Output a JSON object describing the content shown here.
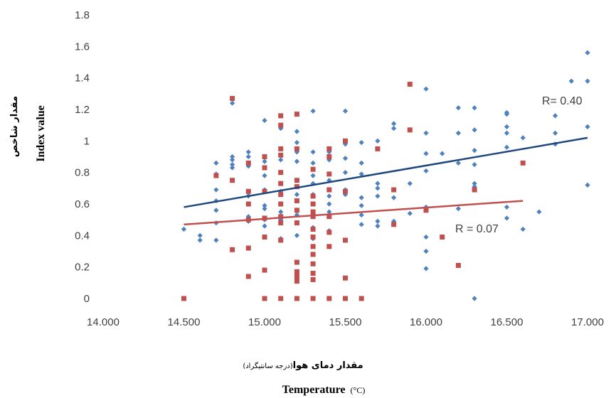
{
  "chart_data": {
    "type": "scatter",
    "title": "",
    "xlabel_fa": "مقدار دمای هوا",
    "xlabel_fa_paren": "(درجه سانتیگراد)",
    "xlabel": "Temperature",
    "xlabel_unit": "(°C)",
    "ylabel_fa": "مقدار شاخص",
    "ylabel": "Index value",
    "xlim": [
      14.0,
      17.0
    ],
    "ylim": [
      0,
      1.8
    ],
    "xticks": [
      "14.000",
      "14.500",
      "15.000",
      "15.500",
      "16.000",
      "16.500",
      "17.000"
    ],
    "yticks": [
      "0",
      "0.2",
      "0.4",
      "0.6",
      "0.8",
      "1",
      "1.2",
      "1.4",
      "1.6",
      "1.8"
    ],
    "grid": false,
    "series": [
      {
        "marker": "diamond",
        "color": "#4f81bd",
        "trend_color": "#1f497d",
        "trend_label": "R= 0.40",
        "trend": [
          [
            14.5,
            0.58
          ],
          [
            17.0,
            1.02
          ]
        ],
        "points": [
          [
            14.5,
            0.44
          ],
          [
            14.6,
            0.4
          ],
          [
            14.6,
            0.37
          ],
          [
            14.7,
            0.86
          ],
          [
            14.7,
            0.79
          ],
          [
            14.7,
            0.69
          ],
          [
            14.7,
            0.62
          ],
          [
            14.7,
            0.56
          ],
          [
            14.7,
            0.48
          ],
          [
            14.7,
            0.37
          ],
          [
            14.8,
            1.24
          ],
          [
            14.8,
            0.9
          ],
          [
            14.8,
            0.88
          ],
          [
            14.8,
            0.85
          ],
          [
            14.8,
            0.83
          ],
          [
            14.9,
            0.93
          ],
          [
            14.9,
            0.9
          ],
          [
            14.9,
            0.84
          ],
          [
            14.9,
            0.67
          ],
          [
            14.9,
            0.65
          ],
          [
            14.9,
            0.52
          ],
          [
            14.9,
            0.49
          ],
          [
            15.0,
            1.13
          ],
          [
            15.0,
            0.87
          ],
          [
            15.0,
            0.78
          ],
          [
            15.0,
            0.69
          ],
          [
            15.0,
            0.59
          ],
          [
            15.0,
            0.57
          ],
          [
            15.0,
            0.5
          ],
          [
            15.0,
            0.46
          ],
          [
            15.1,
            1.08
          ],
          [
            15.1,
            0.88
          ],
          [
            15.1,
            0.68
          ],
          [
            15.1,
            0.55
          ],
          [
            15.1,
            0.5
          ],
          [
            15.1,
            0.38
          ],
          [
            15.2,
            1.06
          ],
          [
            15.2,
            0.99
          ],
          [
            15.2,
            0.93
          ],
          [
            15.2,
            0.87
          ],
          [
            15.2,
            0.66
          ],
          [
            15.2,
            0.62
          ],
          [
            15.2,
            0.53
          ],
          [
            15.2,
            0.4
          ],
          [
            15.3,
            1.19
          ],
          [
            15.3,
            0.93
          ],
          [
            15.3,
            0.86
          ],
          [
            15.3,
            0.78
          ],
          [
            15.3,
            0.73
          ],
          [
            15.3,
            0.66
          ],
          [
            15.3,
            0.6
          ],
          [
            15.3,
            0.52
          ],
          [
            15.3,
            0.45
          ],
          [
            15.3,
            0.38
          ],
          [
            15.4,
            0.93
          ],
          [
            15.4,
            0.88
          ],
          [
            15.4,
            0.75
          ],
          [
            15.4,
            0.65
          ],
          [
            15.4,
            0.6
          ],
          [
            15.4,
            0.55
          ],
          [
            15.4,
            0.43
          ],
          [
            15.5,
            1.19
          ],
          [
            15.5,
            0.98
          ],
          [
            15.5,
            0.89
          ],
          [
            15.5,
            0.8
          ],
          [
            15.5,
            0.69
          ],
          [
            15.5,
            0.66
          ],
          [
            15.6,
            0.99
          ],
          [
            15.6,
            0.86
          ],
          [
            15.6,
            0.79
          ],
          [
            15.6,
            0.64
          ],
          [
            15.6,
            0.59
          ],
          [
            15.6,
            0.53
          ],
          [
            15.6,
            0.47
          ],
          [
            15.7,
            1.0
          ],
          [
            15.7,
            0.73
          ],
          [
            15.7,
            0.7
          ],
          [
            15.7,
            0.65
          ],
          [
            15.7,
            0.49
          ],
          [
            15.7,
            0.46
          ],
          [
            15.8,
            1.11
          ],
          [
            15.8,
            1.08
          ],
          [
            15.8,
            0.64
          ],
          [
            15.8,
            0.49
          ],
          [
            15.9,
            0.73
          ],
          [
            15.9,
            0.54
          ],
          [
            16.0,
            1.33
          ],
          [
            16.0,
            1.05
          ],
          [
            16.0,
            0.92
          ],
          [
            16.0,
            0.81
          ],
          [
            16.0,
            0.58
          ],
          [
            16.0,
            0.39
          ],
          [
            16.0,
            0.3
          ],
          [
            16.0,
            0.19
          ],
          [
            16.1,
            0.92
          ],
          [
            16.2,
            1.21
          ],
          [
            16.2,
            1.05
          ],
          [
            16.2,
            0.86
          ],
          [
            16.2,
            0.57
          ],
          [
            16.3,
            1.21
          ],
          [
            16.3,
            1.07
          ],
          [
            16.3,
            0.94
          ],
          [
            16.3,
            0.85
          ],
          [
            16.3,
            0.73
          ],
          [
            16.3,
            0.71
          ],
          [
            16.3,
            0.0
          ],
          [
            16.5,
            1.18
          ],
          [
            16.5,
            1.17
          ],
          [
            16.5,
            1.09
          ],
          [
            16.5,
            1.05
          ],
          [
            16.5,
            0.96
          ],
          [
            16.5,
            0.58
          ],
          [
            16.5,
            0.51
          ],
          [
            16.6,
            1.02
          ],
          [
            16.6,
            0.44
          ],
          [
            16.7,
            0.55
          ],
          [
            16.8,
            1.16
          ],
          [
            16.8,
            1.05
          ],
          [
            16.8,
            0.98
          ],
          [
            16.9,
            1.38
          ],
          [
            17.0,
            1.56
          ],
          [
            17.0,
            1.38
          ],
          [
            17.0,
            1.09
          ],
          [
            17.0,
            0.72
          ]
        ]
      },
      {
        "marker": "square",
        "color": "#c0504d",
        "trend_color": "#c0504d",
        "trend_label": "R = 0.07",
        "trend": [
          [
            14.5,
            0.47
          ],
          [
            16.6,
            0.62
          ]
        ],
        "points": [
          [
            14.5,
            0.0
          ],
          [
            14.7,
            0.78
          ],
          [
            14.8,
            1.27
          ],
          [
            14.8,
            0.75
          ],
          [
            14.8,
            0.31
          ],
          [
            14.9,
            0.86
          ],
          [
            14.9,
            0.68
          ],
          [
            14.9,
            0.6
          ],
          [
            14.9,
            0.5
          ],
          [
            14.9,
            0.32
          ],
          [
            14.9,
            0.14
          ],
          [
            15.0,
            0.9
          ],
          [
            15.0,
            0.83
          ],
          [
            15.0,
            0.68
          ],
          [
            15.0,
            0.51
          ],
          [
            15.0,
            0.39
          ],
          [
            15.0,
            0.18
          ],
          [
            15.0,
            0.0
          ],
          [
            15.1,
            1.16
          ],
          [
            15.1,
            1.1
          ],
          [
            15.1,
            0.95
          ],
          [
            15.1,
            0.91
          ],
          [
            15.1,
            0.8
          ],
          [
            15.1,
            0.73
          ],
          [
            15.1,
            0.66
          ],
          [
            15.1,
            0.6
          ],
          [
            15.1,
            0.52
          ],
          [
            15.1,
            0.48
          ],
          [
            15.1,
            0.37
          ],
          [
            15.1,
            0.0
          ],
          [
            15.2,
            1.17
          ],
          [
            15.2,
            0.95
          ],
          [
            15.2,
            0.75
          ],
          [
            15.2,
            0.71
          ],
          [
            15.2,
            0.62
          ],
          [
            15.2,
            0.56
          ],
          [
            15.2,
            0.48
          ],
          [
            15.2,
            0.23
          ],
          [
            15.2,
            0.17
          ],
          [
            15.2,
            0.14
          ],
          [
            15.2,
            0.11
          ],
          [
            15.2,
            0.0
          ],
          [
            15.3,
            0.82
          ],
          [
            15.3,
            0.65
          ],
          [
            15.3,
            0.6
          ],
          [
            15.3,
            0.55
          ],
          [
            15.3,
            0.52
          ],
          [
            15.3,
            0.44
          ],
          [
            15.3,
            0.39
          ],
          [
            15.3,
            0.33
          ],
          [
            15.3,
            0.28
          ],
          [
            15.3,
            0.22
          ],
          [
            15.3,
            0.16
          ],
          [
            15.3,
            0.12
          ],
          [
            15.3,
            0.0
          ],
          [
            15.4,
            0.95
          ],
          [
            15.4,
            0.9
          ],
          [
            15.4,
            0.79
          ],
          [
            15.4,
            0.69
          ],
          [
            15.4,
            0.52
          ],
          [
            15.4,
            0.42
          ],
          [
            15.4,
            0.33
          ],
          [
            15.4,
            0.0
          ],
          [
            15.5,
            1.0
          ],
          [
            15.5,
            0.68
          ],
          [
            15.5,
            0.37
          ],
          [
            15.5,
            0.13
          ],
          [
            15.5,
            0.0
          ],
          [
            15.6,
            0.0
          ],
          [
            15.7,
            0.95
          ],
          [
            15.8,
            0.69
          ],
          [
            15.8,
            0.47
          ],
          [
            15.9,
            1.36
          ],
          [
            15.9,
            1.07
          ],
          [
            16.0,
            0.56
          ],
          [
            16.1,
            0.39
          ],
          [
            16.2,
            0.21
          ],
          [
            16.3,
            0.69
          ],
          [
            16.6,
            0.86
          ]
        ]
      }
    ]
  }
}
